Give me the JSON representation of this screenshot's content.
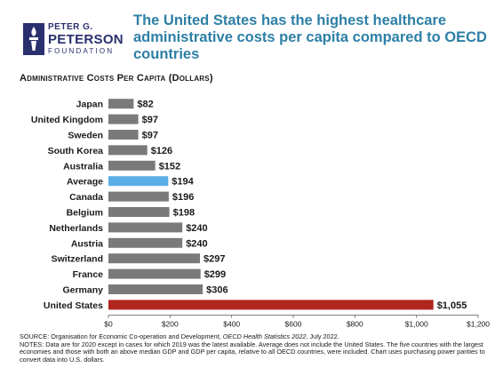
{
  "logo": {
    "line1": "PETER G.",
    "line2": "PETERSON",
    "line3": "FOUNDATION",
    "color": "#2a2f6e"
  },
  "header": {
    "title": "The United States has the highest healthcare administrative costs per capita compared to OECD countries"
  },
  "footer": {
    "source_prefix": "SOURCE: Organisation for Economic Co-operation and Development, ",
    "source_italic": "OECD Health Statistics 2022",
    "source_suffix": ", July 2022.",
    "notes": "NOTES: Data are for 2020 except in cases for which 2019 was the latest available. Average does not include the United States. The five countries with the largest economies and those with both an above median GDP and GDP per capita, relative to all OECD countries, were included. Chart uses purchasing power parities to convert data into U.S. dollars."
  },
  "chart_data": {
    "type": "bar",
    "orientation": "horizontal",
    "title": "Administrative Costs Per Capita (Dollars)",
    "categories": [
      "Japan",
      "United Kingdom",
      "Sweden",
      "South Korea",
      "Australia",
      "Average",
      "Canada",
      "Belgium",
      "Netherlands",
      "Austria",
      "Switzerland",
      "France",
      "Germany",
      "United States"
    ],
    "values": [
      82,
      97,
      97,
      126,
      152,
      194,
      196,
      198,
      240,
      240,
      297,
      299,
      306,
      1055
    ],
    "value_labels": [
      "$82",
      "$97",
      "$97",
      "$126",
      "$152",
      "$194",
      "$196",
      "$198",
      "$240",
      "$240",
      "$297",
      "$299",
      "$306",
      "$1,055"
    ],
    "xlim": [
      0,
      1200
    ],
    "xticks": [
      0,
      200,
      400,
      600,
      800,
      1000,
      1200
    ],
    "xtick_labels": [
      "$0",
      "$200",
      "$400",
      "$600",
      "$800",
      "$1,000",
      "$1,200"
    ],
    "grid": false,
    "colors": {
      "default": "#7a7a7a",
      "Average": "#5aaee8",
      "United States": "#b0261e"
    }
  }
}
